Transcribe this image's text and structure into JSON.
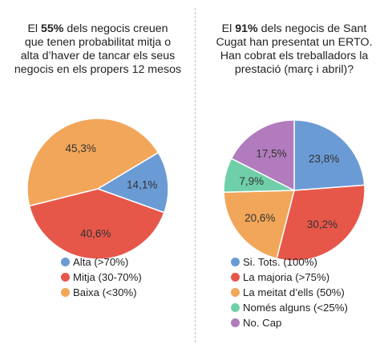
{
  "colors": {
    "blue": "#6b9bd5",
    "red": "#e6574a",
    "orange": "#f2a65a",
    "teal": "#6fcfa8",
    "purple": "#b27bbe"
  },
  "chart_data": [
    {
      "type": "pie",
      "title_prefix": "El ",
      "title_highlight": "55%",
      "title_lines": [
        " dels negocis creuen",
        "que tenen probabilitat mitja o",
        "alta d’haver de tancar els seus",
        "negocis en els propers 12 mesos"
      ],
      "slices": [
        {
          "label": "Alta (>70%)",
          "value": 14.1,
          "value_label": "14,1%",
          "color": "#6b9bd5"
        },
        {
          "label": "Mitja (30-70%)",
          "value": 40.6,
          "value_label": "40,6%",
          "color": "#e6574a"
        },
        {
          "label": "Baixa (<30%)",
          "value": 45.3,
          "value_label": "45,3%",
          "color": "#f2a65a"
        }
      ]
    },
    {
      "type": "pie",
      "title_prefix": "El ",
      "title_highlight": "91%",
      "title_lines": [
        " dels negocis de Sant",
        "Cugat han presentat un ERTO.",
        "Han cobrat els treballadors la",
        "prestació (març i abril)?"
      ],
      "slices": [
        {
          "label": "Si. Tots. (100%)",
          "value": 23.8,
          "value_label": "23,8%",
          "color": "#6b9bd5"
        },
        {
          "label": "La majoria (>75%)",
          "value": 30.2,
          "value_label": "30,2%",
          "color": "#e6574a"
        },
        {
          "label": "La meitat d’ells (50%)",
          "value": 20.6,
          "value_label": "20,6%",
          "color": "#f2a65a"
        },
        {
          "label": "Només alguns (<25%)",
          "value": 7.9,
          "value_label": "7,9%",
          "color": "#6fcfa8"
        },
        {
          "label": "No. Cap",
          "value": 17.5,
          "value_label": "17,5%",
          "color": "#b27bbe"
        }
      ]
    }
  ]
}
